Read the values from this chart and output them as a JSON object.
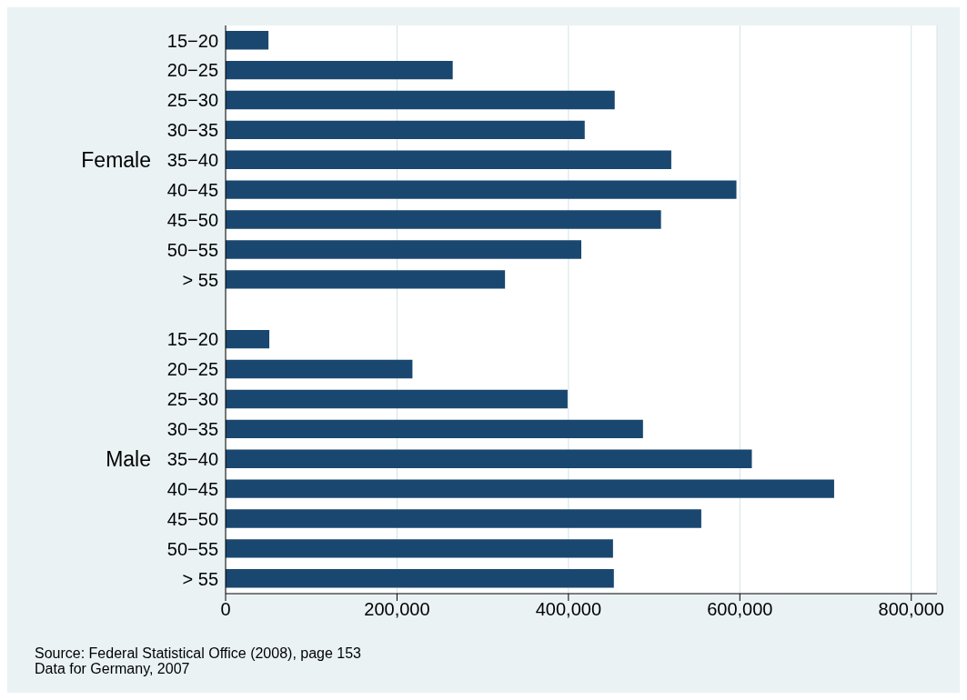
{
  "chart_data": {
    "type": "bar",
    "orientation": "horizontal",
    "categories": [
      "15−20",
      "20−25",
      "25−30",
      "30−35",
      "35−40",
      "40−45",
      "45−50",
      "50−55",
      "> 55",
      null,
      "15−20",
      "20−25",
      "25−30",
      "30−35",
      "35−40",
      "40−45",
      "45−50",
      "50−55",
      "> 55"
    ],
    "values": [
      50000,
      265000,
      454000,
      419000,
      520000,
      596000,
      508000,
      415000,
      326000,
      null,
      51000,
      218000,
      399000,
      487000,
      614000,
      710000,
      555000,
      452000,
      453000
    ],
    "color": "#1a476f",
    "xlim": [
      0,
      830000
    ],
    "xticks": [
      {
        "value": 0,
        "label": "0"
      },
      {
        "value": 200000,
        "label": "200,000"
      },
      {
        "value": 400000,
        "label": "400,000"
      },
      {
        "value": 600000,
        "label": "600,000"
      },
      {
        "value": 800000,
        "label": "800,000"
      }
    ],
    "grid": "x",
    "annotations": [
      "Female",
      "Male",
      "Source: Federal Statistical Office (2008), page 153",
      "Data for Germany, 2007"
    ]
  }
}
